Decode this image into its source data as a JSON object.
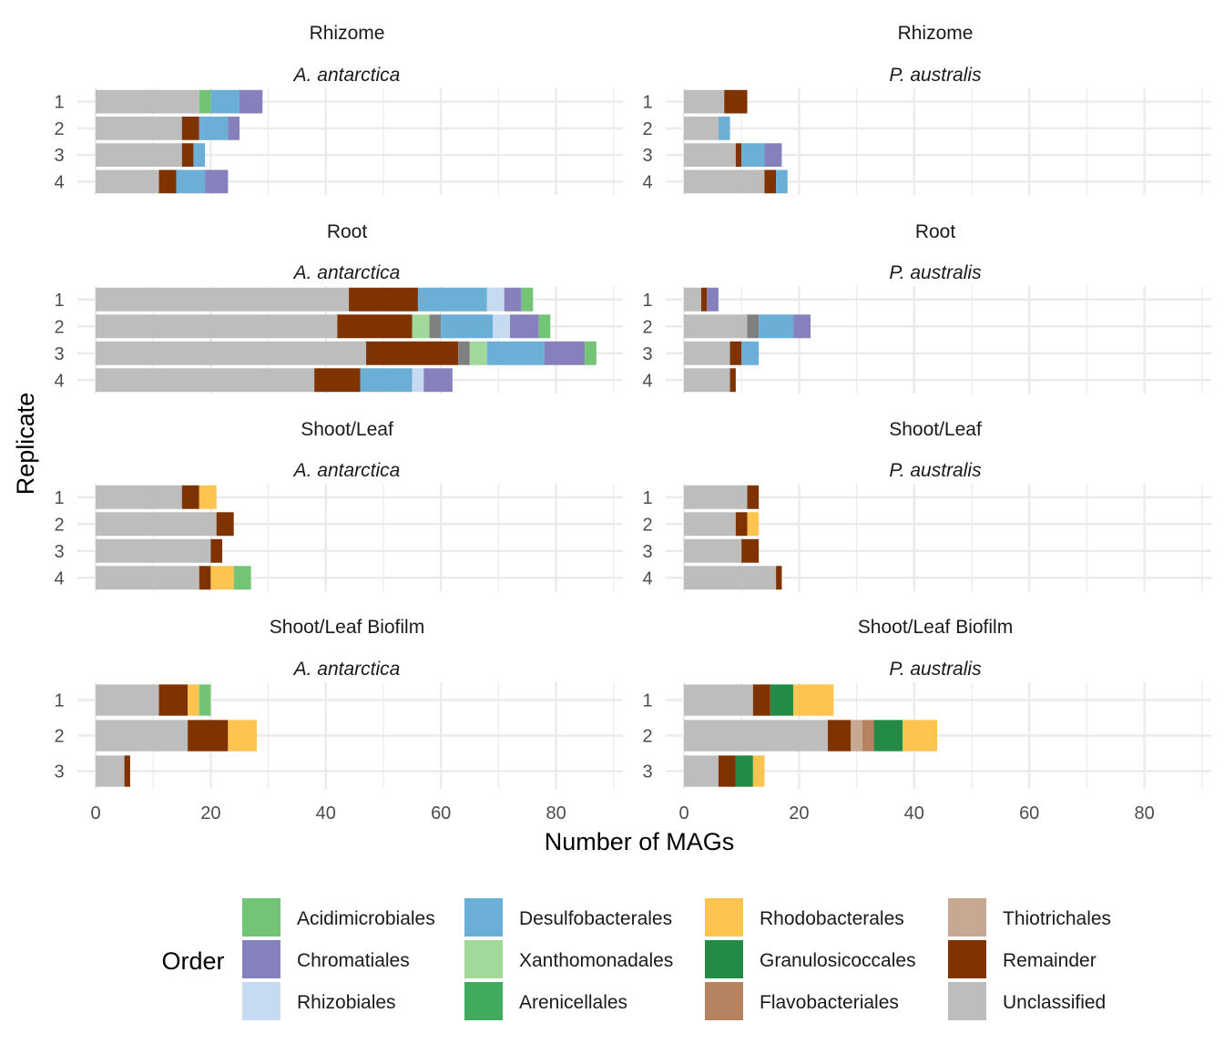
{
  "chart_data": {
    "type": "bar",
    "orientation": "horizontal",
    "stacked": true,
    "xlabel": "Number of MAGs",
    "ylabel": "Replicate",
    "xlim": [
      0,
      90
    ],
    "xticks": [
      0,
      20,
      40,
      60,
      80
    ],
    "grid": true,
    "legend": {
      "title": "Order",
      "placement": "bottom",
      "items": [
        {
          "name": "Acidimicrobiales",
          "color": "#74c476"
        },
        {
          "name": "Chromatiales",
          "color": "#8681bd"
        },
        {
          "name": "Rhizobiales",
          "color": "#c6dbef"
        },
        {
          "name": "Desulfobacterales",
          "color": "#6baed6"
        },
        {
          "name": "Xanthomonadales",
          "color": "#a1d99b"
        },
        {
          "name": "Arenicellales",
          "color": "#41ab5d"
        },
        {
          "name": "Rhodobacterales",
          "color": "#fec44f"
        },
        {
          "name": "Granulosicoccales",
          "color": "#238b45"
        },
        {
          "name": "Flavobacteriales",
          "color": "#b5835f"
        },
        {
          "name": "Thiotrichales",
          "color": "#c7a892"
        },
        {
          "name": "Remainder",
          "color": "#7f3300"
        },
        {
          "name": "Unclassified",
          "color": "#bdbdbd"
        }
      ]
    },
    "colors": {
      "Acidimicrobiales": "#74c476",
      "Chromatiales": "#8681bd",
      "Rhizobiales": "#c6dbef",
      "Desulfobacterales": "#6baed6",
      "Xanthomonadales": "#a1d99b",
      "Arenicellales": "#41ab5d",
      "Rhodobacterales": "#fec44f",
      "Granulosicoccales": "#238b45",
      "Flavobacteriales": "#b5835f",
      "Thiotrichales": "#c7a892",
      "Remainder": "#7f3300",
      "Unclassified": "#bdbdbd",
      "Unlabeled": "#808080"
    },
    "panels": [
      {
        "tissue": "Rhizome",
        "species": "A. antarctica",
        "replicates": [
          {
            "replicate": "1",
            "segments": [
              {
                "order": "Unclassified",
                "value": 18
              },
              {
                "order": "Acidimicrobiales",
                "value": 2
              },
              {
                "order": "Desulfobacterales",
                "value": 5
              },
              {
                "order": "Chromatiales",
                "value": 4
              }
            ]
          },
          {
            "replicate": "2",
            "segments": [
              {
                "order": "Unclassified",
                "value": 15
              },
              {
                "order": "Remainder",
                "value": 3
              },
              {
                "order": "Desulfobacterales",
                "value": 5
              },
              {
                "order": "Chromatiales",
                "value": 2
              }
            ]
          },
          {
            "replicate": "3",
            "segments": [
              {
                "order": "Unclassified",
                "value": 15
              },
              {
                "order": "Remainder",
                "value": 2
              },
              {
                "order": "Desulfobacterales",
                "value": 2
              }
            ]
          },
          {
            "replicate": "4",
            "segments": [
              {
                "order": "Unclassified",
                "value": 11
              },
              {
                "order": "Remainder",
                "value": 3
              },
              {
                "order": "Desulfobacterales",
                "value": 5
              },
              {
                "order": "Chromatiales",
                "value": 4
              }
            ]
          }
        ]
      },
      {
        "tissue": "Rhizome",
        "species": "P. australis",
        "replicates": [
          {
            "replicate": "1",
            "segments": [
              {
                "order": "Unclassified",
                "value": 7
              },
              {
                "order": "Remainder",
                "value": 4
              }
            ]
          },
          {
            "replicate": "2",
            "segments": [
              {
                "order": "Unclassified",
                "value": 6
              },
              {
                "order": "Desulfobacterales",
                "value": 2
              }
            ]
          },
          {
            "replicate": "3",
            "segments": [
              {
                "order": "Unclassified",
                "value": 9
              },
              {
                "order": "Remainder",
                "value": 1
              },
              {
                "order": "Desulfobacterales",
                "value": 4
              },
              {
                "order": "Chromatiales",
                "value": 3
              }
            ]
          },
          {
            "replicate": "4",
            "segments": [
              {
                "order": "Unclassified",
                "value": 14
              },
              {
                "order": "Remainder",
                "value": 2
              },
              {
                "order": "Desulfobacterales",
                "value": 2
              }
            ]
          }
        ]
      },
      {
        "tissue": "Root",
        "species": "A. antarctica",
        "replicates": [
          {
            "replicate": "1",
            "segments": [
              {
                "order": "Unclassified",
                "value": 44
              },
              {
                "order": "Remainder",
                "value": 12
              },
              {
                "order": "Desulfobacterales",
                "value": 12
              },
              {
                "order": "Rhizobiales",
                "value": 3
              },
              {
                "order": "Chromatiales",
                "value": 3
              },
              {
                "order": "Acidimicrobiales",
                "value": 2
              }
            ]
          },
          {
            "replicate": "2",
            "segments": [
              {
                "order": "Unclassified",
                "value": 42
              },
              {
                "order": "Remainder",
                "value": 13
              },
              {
                "order": "Xanthomonadales",
                "value": 3
              },
              {
                "order": "Unlabeled",
                "value": 2
              },
              {
                "order": "Desulfobacterales",
                "value": 9
              },
              {
                "order": "Rhizobiales",
                "value": 3
              },
              {
                "order": "Chromatiales",
                "value": 5
              },
              {
                "order": "Acidimicrobiales",
                "value": 2
              }
            ]
          },
          {
            "replicate": "3",
            "segments": [
              {
                "order": "Unclassified",
                "value": 47
              },
              {
                "order": "Remainder",
                "value": 16
              },
              {
                "order": "Unlabeled",
                "value": 2
              },
              {
                "order": "Xanthomonadales",
                "value": 3
              },
              {
                "order": "Desulfobacterales",
                "value": 10
              },
              {
                "order": "Chromatiales",
                "value": 7
              },
              {
                "order": "Acidimicrobiales",
                "value": 2
              }
            ]
          },
          {
            "replicate": "4",
            "segments": [
              {
                "order": "Unclassified",
                "value": 38
              },
              {
                "order": "Remainder",
                "value": 8
              },
              {
                "order": "Desulfobacterales",
                "value": 9
              },
              {
                "order": "Rhizobiales",
                "value": 2
              },
              {
                "order": "Chromatiales",
                "value": 5
              }
            ]
          }
        ]
      },
      {
        "tissue": "Root",
        "species": "P. australis",
        "replicates": [
          {
            "replicate": "1",
            "segments": [
              {
                "order": "Unclassified",
                "value": 3
              },
              {
                "order": "Remainder",
                "value": 1
              },
              {
                "order": "Chromatiales",
                "value": 2
              }
            ]
          },
          {
            "replicate": "2",
            "segments": [
              {
                "order": "Unclassified",
                "value": 11
              },
              {
                "order": "Unlabeled",
                "value": 2
              },
              {
                "order": "Desulfobacterales",
                "value": 6
              },
              {
                "order": "Chromatiales",
                "value": 3
              }
            ]
          },
          {
            "replicate": "3",
            "segments": [
              {
                "order": "Unclassified",
                "value": 8
              },
              {
                "order": "Remainder",
                "value": 2
              },
              {
                "order": "Desulfobacterales",
                "value": 3
              }
            ]
          },
          {
            "replicate": "4",
            "segments": [
              {
                "order": "Unclassified",
                "value": 8
              },
              {
                "order": "Remainder",
                "value": 1
              }
            ]
          }
        ]
      },
      {
        "tissue": "Shoot/Leaf",
        "species": "A. antarctica",
        "replicates": [
          {
            "replicate": "1",
            "segments": [
              {
                "order": "Unclassified",
                "value": 15
              },
              {
                "order": "Remainder",
                "value": 3
              },
              {
                "order": "Rhodobacterales",
                "value": 3
              }
            ]
          },
          {
            "replicate": "2",
            "segments": [
              {
                "order": "Unclassified",
                "value": 21
              },
              {
                "order": "Remainder",
                "value": 3
              }
            ]
          },
          {
            "replicate": "3",
            "segments": [
              {
                "order": "Unclassified",
                "value": 20
              },
              {
                "order": "Remainder",
                "value": 2
              }
            ]
          },
          {
            "replicate": "4",
            "segments": [
              {
                "order": "Unclassified",
                "value": 18
              },
              {
                "order": "Remainder",
                "value": 2
              },
              {
                "order": "Rhodobacterales",
                "value": 4
              },
              {
                "order": "Acidimicrobiales",
                "value": 3
              }
            ]
          }
        ]
      },
      {
        "tissue": "Shoot/Leaf",
        "species": "P. australis",
        "replicates": [
          {
            "replicate": "1",
            "segments": [
              {
                "order": "Unclassified",
                "value": 11
              },
              {
                "order": "Remainder",
                "value": 2
              }
            ]
          },
          {
            "replicate": "2",
            "segments": [
              {
                "order": "Unclassified",
                "value": 9
              },
              {
                "order": "Remainder",
                "value": 2
              },
              {
                "order": "Rhodobacterales",
                "value": 2
              }
            ]
          },
          {
            "replicate": "3",
            "segments": [
              {
                "order": "Unclassified",
                "value": 10
              },
              {
                "order": "Remainder",
                "value": 3
              }
            ]
          },
          {
            "replicate": "4",
            "segments": [
              {
                "order": "Unclassified",
                "value": 16
              },
              {
                "order": "Remainder",
                "value": 1
              }
            ]
          }
        ]
      },
      {
        "tissue": "Shoot/Leaf Biofilm",
        "species": "A. antarctica",
        "replicates": [
          {
            "replicate": "1",
            "segments": [
              {
                "order": "Unclassified",
                "value": 11
              },
              {
                "order": "Remainder",
                "value": 5
              },
              {
                "order": "Rhodobacterales",
                "value": 2
              },
              {
                "order": "Acidimicrobiales",
                "value": 2
              }
            ]
          },
          {
            "replicate": "2",
            "segments": [
              {
                "order": "Unclassified",
                "value": 16
              },
              {
                "order": "Remainder",
                "value": 7
              },
              {
                "order": "Rhodobacterales",
                "value": 5
              }
            ]
          },
          {
            "replicate": "3",
            "segments": [
              {
                "order": "Unclassified",
                "value": 5
              },
              {
                "order": "Remainder",
                "value": 1
              }
            ]
          }
        ]
      },
      {
        "tissue": "Shoot/Leaf Biofilm",
        "species": "P. australis",
        "replicates": [
          {
            "replicate": "1",
            "segments": [
              {
                "order": "Unclassified",
                "value": 12
              },
              {
                "order": "Remainder",
                "value": 3
              },
              {
                "order": "Granulosicoccales",
                "value": 4
              },
              {
                "order": "Rhodobacterales",
                "value": 7
              }
            ]
          },
          {
            "replicate": "2",
            "segments": [
              {
                "order": "Unclassified",
                "value": 25
              },
              {
                "order": "Remainder",
                "value": 4
              },
              {
                "order": "Thiotrichales",
                "value": 2
              },
              {
                "order": "Flavobacteriales",
                "value": 2
              },
              {
                "order": "Granulosicoccales",
                "value": 5
              },
              {
                "order": "Rhodobacterales",
                "value": 6
              }
            ]
          },
          {
            "replicate": "3",
            "segments": [
              {
                "order": "Unclassified",
                "value": 6
              },
              {
                "order": "Remainder",
                "value": 3
              },
              {
                "order": "Granulosicoccales",
                "value": 3
              },
              {
                "order": "Rhodobacterales",
                "value": 2
              }
            ]
          }
        ]
      }
    ]
  }
}
